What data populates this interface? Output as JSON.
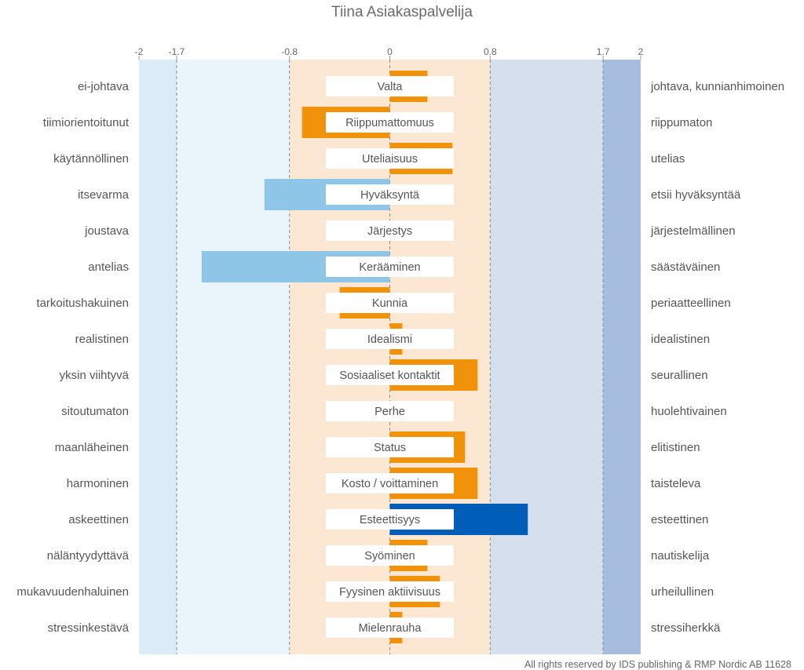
{
  "chart_data": {
    "type": "bar",
    "orientation": "horizontal",
    "title": "Tiina Asiakaspalvelija",
    "xlim": [
      -2,
      2
    ],
    "ticks": [
      {
        "value": -2,
        "label": "-2"
      },
      {
        "value": -1.7,
        "label": "-1.7"
      },
      {
        "value": -0.8,
        "label": "-0.8"
      },
      {
        "value": 0,
        "label": "0"
      },
      {
        "value": 0.8,
        "label": "0.8"
      },
      {
        "value": 1.7,
        "label": "1.7"
      },
      {
        "value": 2,
        "label": "2"
      }
    ],
    "zones": [
      {
        "from": -2,
        "to": -1.7,
        "color": "#dbecf8"
      },
      {
        "from": -1.7,
        "to": -0.8,
        "color": "#eaf4fb"
      },
      {
        "from": -0.8,
        "to": 0.8,
        "color": "#fce8d2"
      },
      {
        "from": 0.8,
        "to": 1.7,
        "color": "#d6dfee"
      },
      {
        "from": 1.7,
        "to": 2,
        "color": "#a6bde0"
      }
    ],
    "colors": {
      "orange": "#f0920a",
      "light_blue": "#8ec6e8",
      "dark_blue": "#005eb8"
    },
    "scales": [
      {
        "name": "Valta",
        "left": "ei-johtava",
        "right": "johtava, kunnianhimoinen",
        "value": 0.3,
        "style": "split",
        "color": "orange"
      },
      {
        "name": "Riippumattomuus",
        "left": "tiimiorientoitunut",
        "right": "riippumaton",
        "value": -0.7,
        "style": "full",
        "color": "orange"
      },
      {
        "name": "Uteliaisuus",
        "left": "käytännöllinen",
        "right": "utelias",
        "value": 0.5,
        "style": "split",
        "color": "orange"
      },
      {
        "name": "Hyväksyntä",
        "left": "itsevarma",
        "right": "etsii hyväksyntää",
        "value": -1.0,
        "style": "full",
        "color": "light_blue"
      },
      {
        "name": "Järjestys",
        "left": "joustava",
        "right": "järjestelmällinen",
        "value": 0,
        "style": "none",
        "color": "orange"
      },
      {
        "name": "Kerääminen",
        "left": "antelias",
        "right": "säästäväinen",
        "value": -1.5,
        "style": "full",
        "color": "light_blue"
      },
      {
        "name": "Kunnia",
        "left": "tarkoitushakuinen",
        "right": "periaatteellinen",
        "value": -0.4,
        "style": "split",
        "color": "orange"
      },
      {
        "name": "Idealismi",
        "left": "realistinen",
        "right": "idealistinen",
        "value": 0.1,
        "style": "split",
        "color": "orange"
      },
      {
        "name": "Sosiaaliset kontaktit",
        "left": "yksin viihtyvä",
        "right": "seurallinen",
        "value": 0.7,
        "style": "full",
        "color": "orange"
      },
      {
        "name": "Perhe",
        "left": "sitoutumaton",
        "right": "huolehtivainen",
        "value": 0,
        "style": "none",
        "color": "orange"
      },
      {
        "name": "Status",
        "left": "maanläheinen",
        "right": "elitistinen",
        "value": 0.6,
        "style": "full",
        "color": "orange"
      },
      {
        "name": "Kosto / voittaminen",
        "left": "harmoninen",
        "right": "taisteleva",
        "value": 0.7,
        "style": "full",
        "color": "orange"
      },
      {
        "name": "Esteettisyys",
        "left": "askeettinen",
        "right": "esteettinen",
        "value": 1.1,
        "style": "full",
        "color": "dark_blue"
      },
      {
        "name": "Syöminen",
        "left": "näläntyydyttävä",
        "right": "nautiskelija",
        "value": 0.3,
        "style": "split",
        "color": "orange"
      },
      {
        "name": "Fyysinen aktiivisuus",
        "left": "mukavuudenhaluinen",
        "right": "urheilullinen",
        "value": 0.4,
        "style": "split",
        "color": "orange"
      },
      {
        "name": "Mielenrauha",
        "left": "stressinkestävä",
        "right": "stressiherkkä",
        "value": 0.1,
        "style": "split",
        "color": "orange"
      }
    ]
  },
  "footer": "All rights reserved by IDS publishing & RMP Nordic AB 11628"
}
